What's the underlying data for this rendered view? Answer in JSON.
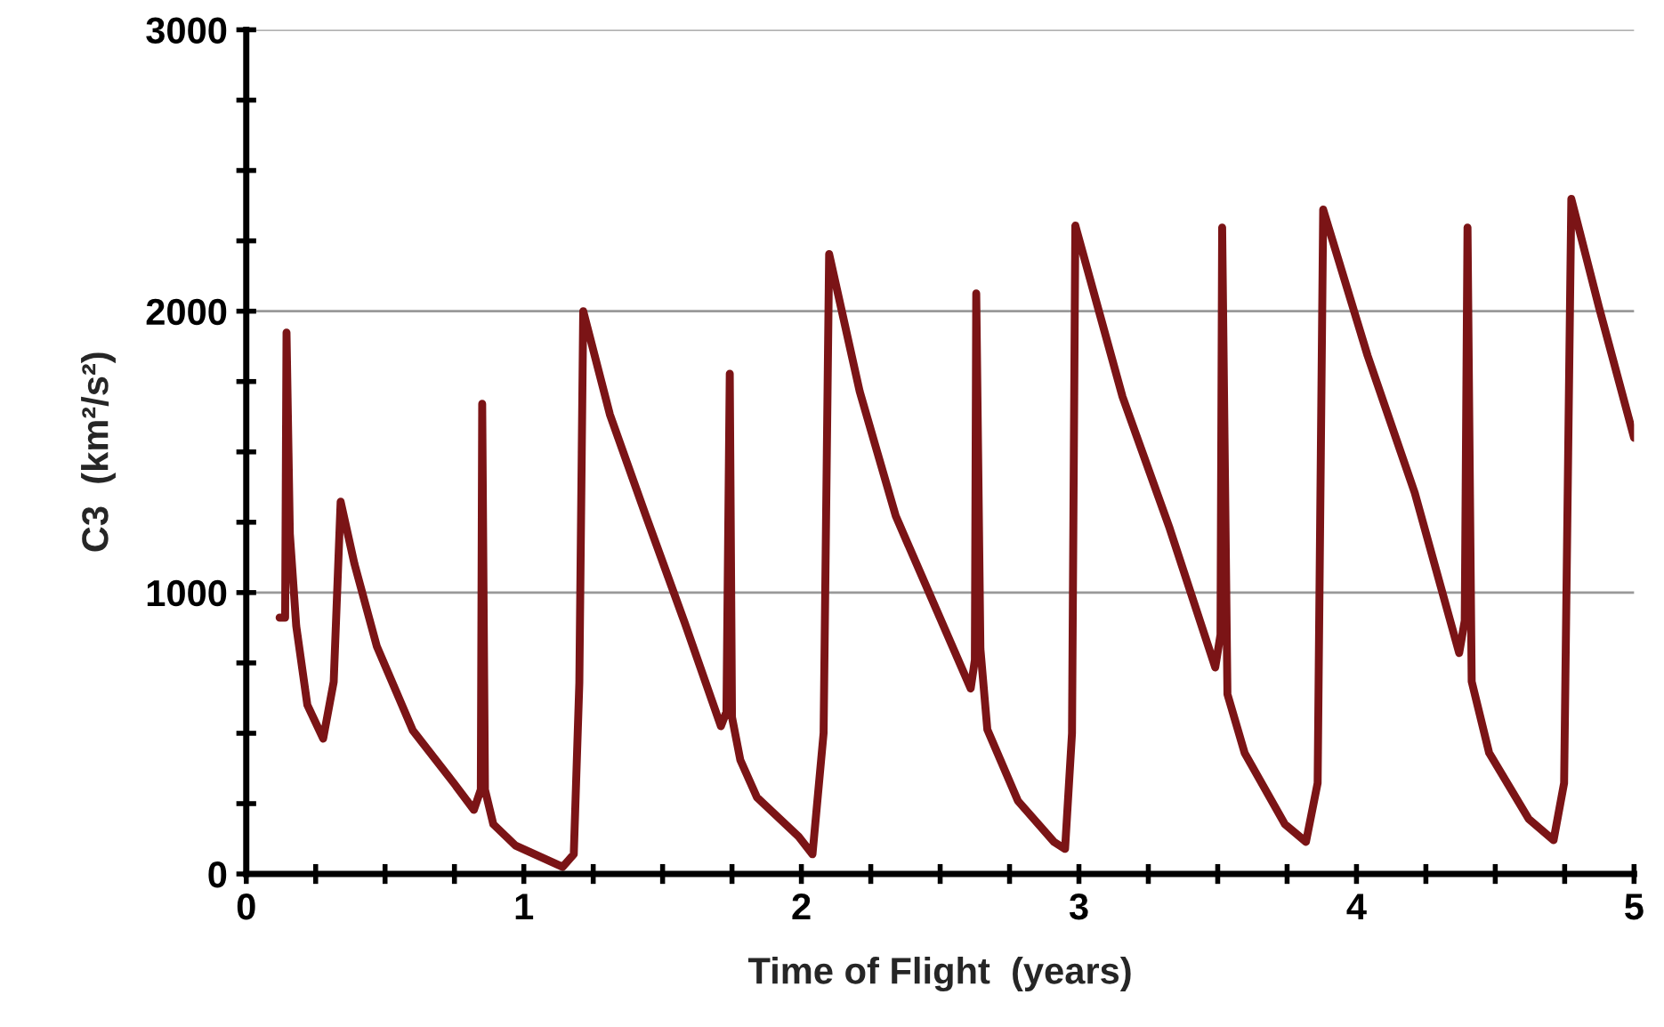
{
  "chart_data": {
    "type": "line",
    "xlabel": "Time of Flight  (years)",
    "ylabel": "C3  (km²/s²)",
    "xlim": [
      0,
      5
    ],
    "ylim": [
      0,
      3000
    ],
    "xticks": [
      0,
      {
        "value": 0.25,
        "label": null
      },
      {
        "value": 0.5,
        "label": null
      },
      {
        "value": 0.75,
        "label": null
      },
      1,
      {
        "value": 1.25,
        "label": null
      },
      {
        "value": 1.5,
        "label": null
      },
      {
        "value": 1.75,
        "label": null
      },
      2,
      {
        "value": 2.25,
        "label": null
      },
      {
        "value": 2.5,
        "label": null
      },
      {
        "value": 2.75,
        "label": null
      },
      3,
      {
        "value": 3.25,
        "label": null
      },
      {
        "value": 3.5,
        "label": null
      },
      {
        "value": 3.75,
        "label": null
      },
      4,
      {
        "value": 4.25,
        "label": null
      },
      {
        "value": 4.5,
        "label": null
      },
      {
        "value": 4.75,
        "label": null
      },
      5
    ],
    "yticks": [
      0,
      {
        "value": 250,
        "label": null
      },
      {
        "value": 500,
        "label": null
      },
      {
        "value": 750,
        "label": null
      },
      1000,
      {
        "value": 1250,
        "label": null
      },
      {
        "value": 1500,
        "label": null
      },
      {
        "value": 1750,
        "label": null
      },
      2000,
      {
        "value": 2250,
        "label": null
      },
      {
        "value": 2500,
        "label": null
      },
      {
        "value": 2750,
        "label": null
      },
      3000
    ],
    "grid": "y",
    "legend": false,
    "marker": "none",
    "line_style": "solid",
    "series": [
      {
        "color": "#7b1416",
        "x": [
          0.12,
          0.14,
          0.145,
          0.157,
          0.18,
          0.22,
          0.277,
          0.315,
          0.34,
          0.39,
          0.47,
          0.6,
          0.75,
          0.82,
          0.845,
          0.85,
          0.86,
          0.89,
          0.97,
          1.14,
          1.18,
          1.2,
          1.214,
          1.31,
          1.44,
          1.58,
          1.71,
          1.73,
          1.742,
          1.75,
          1.78,
          1.84,
          1.99,
          2.04,
          2.08,
          2.1,
          2.21,
          2.34,
          2.61,
          2.625,
          2.63,
          2.645,
          2.67,
          2.78,
          2.91,
          2.95,
          2.975,
          2.987,
          3.157,
          3.327,
          3.491,
          3.51,
          3.516,
          3.535,
          3.597,
          3.742,
          3.818,
          3.86,
          3.88,
          4.04,
          4.21,
          4.37,
          4.39,
          4.4,
          4.415,
          4.478,
          4.62,
          4.71,
          4.748,
          4.774,
          4.874,
          5.0
        ],
        "values": [
          911,
          911,
          1924,
          1209,
          881,
          601,
          481,
          683,
          1323,
          1101,
          810,
          510,
          320,
          228,
          300,
          1671,
          300,
          177,
          101,
          25,
          70,
          680,
          2000,
          1633,
          1272,
          892,
          525,
          576,
          1778,
          557,
          405,
          272,
          133,
          70,
          500,
          2203,
          1715,
          1272,
          659,
          760,
          2063,
          800,
          513,
          260,
          114,
          89,
          500,
          2304,
          1696,
          1228,
          734,
          850,
          2297,
          639,
          430,
          177,
          114,
          323,
          2361,
          1842,
          1354,
          785,
          900,
          2297,
          684,
          430,
          196,
          120,
          323,
          2399,
          2013,
          1550
        ]
      }
    ]
  }
}
